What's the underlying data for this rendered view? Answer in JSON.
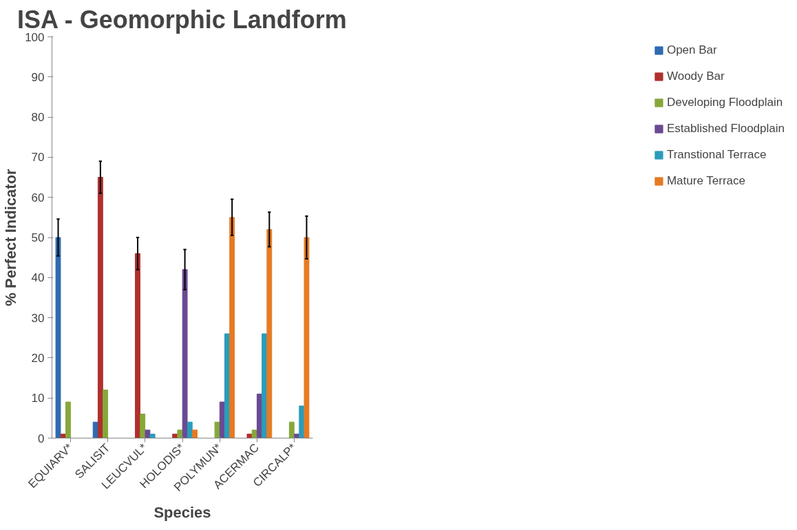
{
  "chart_data": {
    "type": "bar",
    "title": "ISA - Geomorphic Landform",
    "xlabel": "Species",
    "ylabel": "% Perfect Indicator",
    "categories": [
      "EQUIARV*",
      "SALISIT",
      "LEUCVUL*",
      "HOLODIS*",
      "POLYMUN*",
      "ACERMAC",
      "CIRCALP*"
    ],
    "series": [
      {
        "name": "Open Bar",
        "color": "#2e6bb0",
        "values": [
          50,
          4,
          0,
          0,
          0,
          0,
          0
        ],
        "errors": [
          4.6,
          null,
          null,
          null,
          null,
          null,
          null
        ]
      },
      {
        "name": "Woody Bar",
        "color": "#b0302d",
        "values": [
          1,
          65,
          46,
          1,
          0,
          1,
          0
        ],
        "errors": [
          null,
          4,
          4,
          null,
          null,
          null,
          null
        ]
      },
      {
        "name": "Developing Floodplain",
        "color": "#86a83a",
        "values": [
          9,
          12,
          6,
          2,
          4,
          2,
          4
        ]
      },
      {
        "name": "Established Floodplain",
        "color": "#6a4a93",
        "values": [
          0,
          0,
          2,
          42,
          9,
          11,
          1
        ],
        "errors": [
          null,
          null,
          null,
          5,
          null,
          null,
          null
        ]
      },
      {
        "name": "Transtional Terrace",
        "color": "#2a9cbb",
        "values": [
          0,
          0,
          1,
          4,
          26,
          26,
          8
        ]
      },
      {
        "name": "Mature Terrace",
        "color": "#e67a22",
        "values": [
          0,
          0,
          0,
          2,
          55,
          52,
          50
        ],
        "errors": [
          null,
          null,
          null,
          null,
          4.5,
          4.3,
          5.3
        ]
      }
    ],
    "ylim": [
      0,
      100
    ],
    "yticks": [
      0,
      10,
      20,
      30,
      40,
      50,
      60,
      70,
      80,
      90,
      100
    ],
    "grid": false,
    "legend": "right"
  }
}
